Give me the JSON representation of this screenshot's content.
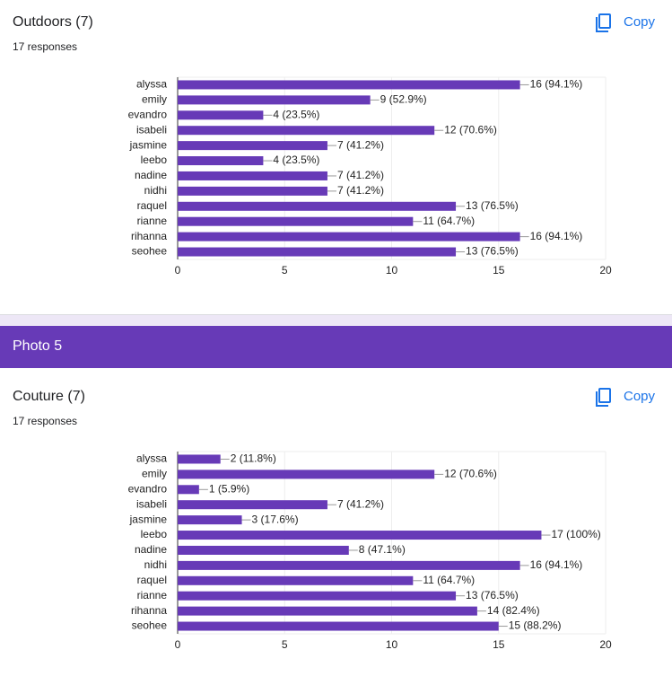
{
  "section_header": "Photo 5",
  "copy_buttons": [
    "Copy",
    "Copy"
  ],
  "chart_data": [
    {
      "type": "bar",
      "orientation": "horizontal",
      "title": "Outdoors (7)",
      "subtitle": "17 responses",
      "categories": [
        "alyssa",
        "emily",
        "evandro",
        "isabeli",
        "jasmine",
        "leebo",
        "nadine",
        "nidhi",
        "raquel",
        "rianne",
        "rihanna",
        "seohee"
      ],
      "values": [
        16,
        9,
        4,
        12,
        7,
        4,
        7,
        7,
        13,
        11,
        16,
        13
      ],
      "value_labels": [
        "16 (94.1%)",
        "9 (52.9%)",
        "4 (23.5%)",
        "12 (70.6%)",
        "7 (41.2%)",
        "4 (23.5%)",
        "7 (41.2%)",
        "7 (41.2%)",
        "13 (76.5%)",
        "11 (64.7%)",
        "16 (94.1%)",
        "13 (76.5%)"
      ],
      "color": "#673ab7",
      "xlim": [
        0,
        20
      ],
      "xticks": [
        0,
        5,
        10,
        15,
        20
      ],
      "grid": true
    },
    {
      "type": "bar",
      "orientation": "horizontal",
      "title": "Couture (7)",
      "subtitle": "17 responses",
      "categories": [
        "alyssa",
        "emily",
        "evandro",
        "isabeli",
        "jasmine",
        "leebo",
        "nadine",
        "nidhi",
        "raquel",
        "rianne",
        "rihanna",
        "seohee"
      ],
      "values": [
        2,
        12,
        1,
        7,
        3,
        17,
        8,
        16,
        11,
        13,
        14,
        15
      ],
      "value_labels": [
        "2 (11.8%)",
        "12 (70.6%)",
        "1 (5.9%)",
        "7 (41.2%)",
        "3 (17.6%)",
        "17 (100%)",
        "8 (47.1%)",
        "16 (94.1%)",
        "11 (64.7%)",
        "13 (76.5%)",
        "14 (82.4%)",
        "15 (88.2%)"
      ],
      "color": "#673ab7",
      "xlim": [
        0,
        20
      ],
      "xticks": [
        0,
        5,
        10,
        15,
        20
      ],
      "grid": true
    }
  ]
}
